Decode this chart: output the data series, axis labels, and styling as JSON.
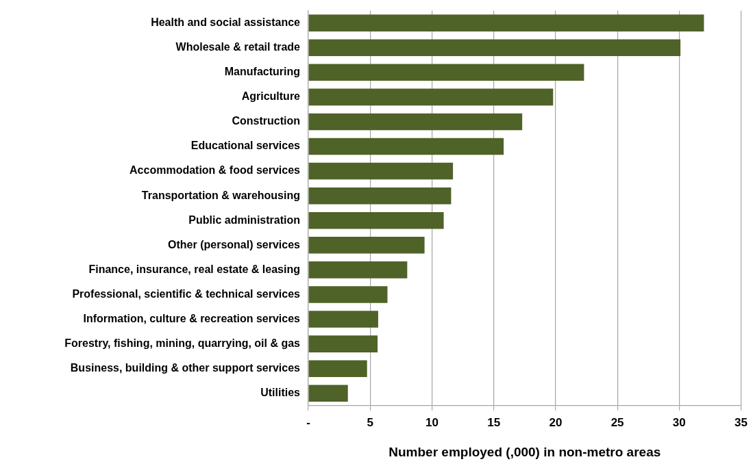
{
  "chart_data": {
    "type": "bar",
    "orientation": "horizontal",
    "categories": [
      "Health and social assistance",
      "Wholesale & retail trade",
      "Manufacturing",
      "Agriculture",
      "Construction",
      "Educational services",
      "Accommodation & food services",
      "Transportation & warehousing",
      "Public administration",
      "Other (personal) services",
      "Finance, insurance, real estate & leasing",
      "Professional, scientific & technical services",
      "Information, culture & recreation services",
      "Forestry, fishing, mining, quarrying, oil & gas",
      "Business, building & other support services",
      "Utilities"
    ],
    "values": [
      32.0,
      30.1,
      22.3,
      19.8,
      17.3,
      15.8,
      11.7,
      11.55,
      10.95,
      9.4,
      8.0,
      6.4,
      5.65,
      5.6,
      4.75,
      3.2
    ],
    "color": "#4f6228",
    "xlabel": "Number employed (,000) in non-metro areas",
    "xlim": [
      0,
      35
    ],
    "xticks": [
      {
        "value": 0,
        "label": "-"
      },
      5,
      10,
      15,
      20,
      25,
      30,
      35
    ],
    "grid": "x",
    "legend": false
  }
}
